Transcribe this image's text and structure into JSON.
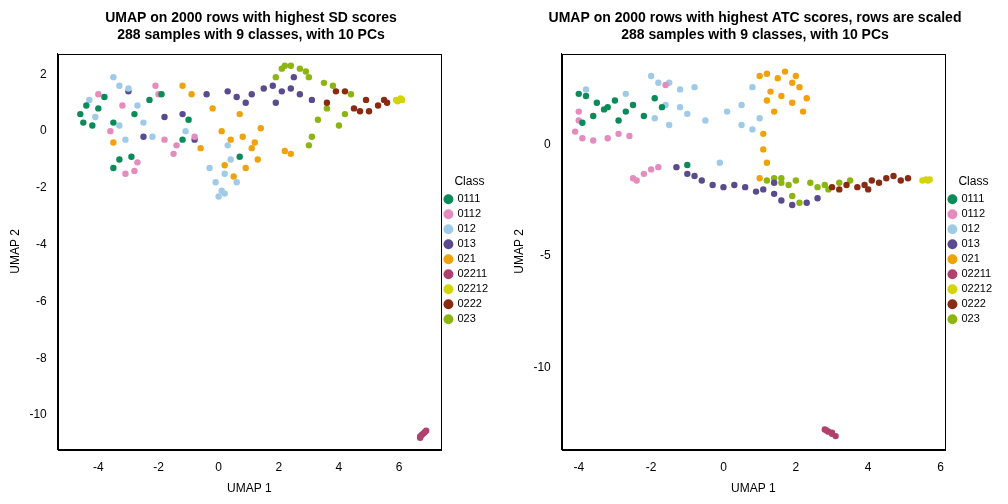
{
  "chart_data": [
    {
      "type": "scatter",
      "title": [
        "UMAP on 2000 rows with highest SD scores",
        "288 samples with 9 classes, with 10 PCs"
      ],
      "x_label": "UMAP 1",
      "y_label": "UMAP 2",
      "xlim": [
        -5.35,
        7.39
      ],
      "ylim": [
        -11.2,
        2.73
      ],
      "xticks": [
        -4,
        -2,
        0,
        2,
        4,
        6
      ],
      "yticks": [
        -10,
        -8,
        -6,
        -4,
        -2,
        0,
        2
      ],
      "grid": false,
      "legend": "right",
      "legend_title": "Class",
      "marker": "circle",
      "series": [
        {
          "name": "0111",
          "color": "#0b8a5a",
          "x": [
            -4.5,
            -4.6,
            -4.4,
            -4.0,
            -3.5,
            -3.3,
            -3.5,
            -2.9,
            -1.2,
            -1.0,
            -1.9,
            -2.8,
            0.7,
            -4.2,
            -3.8,
            -2.3
          ],
          "y": [
            0.3,
            0.6,
            0.9,
            0.8,
            0.3,
            -1.0,
            -1.3,
            -0.9,
            -0.3,
            0.4,
            1.3,
            0.6,
            -0.9,
            0.2,
            1.2,
            1.1
          ]
        },
        {
          "name": "0112",
          "color": "#e38cbd",
          "x": [
            -2.1,
            -2.0,
            -1.5,
            -1.4,
            -2.8,
            -3.1,
            -4.0,
            -3.6,
            -0.8,
            -1.8,
            -2.7,
            -3.2
          ],
          "y": [
            1.6,
            1.3,
            -0.8,
            -0.5,
            -1.4,
            -1.5,
            1.3,
            0.0,
            -0.2,
            -0.3,
            -1.1,
            0.9
          ]
        },
        {
          "name": "012",
          "color": "#9fcbe8",
          "x": [
            -3.5,
            -3.3,
            -3.0,
            -2.7,
            -4.1,
            -3.3,
            -3.1,
            -2.2,
            -1.1,
            0.0,
            0.1,
            -0.1,
            0.2,
            0.4,
            0.3,
            0.6,
            0.2,
            -0.3,
            -2.5,
            -4.3
          ],
          "y": [
            1.9,
            1.6,
            1.5,
            0.9,
            0.5,
            0.2,
            -0.3,
            -0.2,
            0.0,
            -2.3,
            -2.1,
            -1.8,
            -1.5,
            -1.0,
            -0.5,
            -1.8,
            -2.2,
            -1.3,
            0.3,
            1.1
          ]
        },
        {
          "name": "013",
          "color": "#5a4a8e",
          "x": [
            -3.0,
            -1.8,
            -0.8,
            -0.4,
            0.3,
            0.6,
            1.1,
            1.5,
            1.8,
            2.1,
            2.4,
            2.5,
            2.7,
            3.1,
            1.9,
            -1.2,
            -2.5,
            0.9
          ],
          "y": [
            1.4,
            0.5,
            -0.3,
            1.3,
            1.4,
            1.2,
            1.3,
            1.5,
            1.6,
            1.4,
            1.5,
            1.9,
            1.3,
            1.1,
            1.0,
            0.6,
            -0.2,
            1.0
          ]
        },
        {
          "name": "021",
          "color": "#f0a20c",
          "x": [
            -1.2,
            -0.9,
            -0.2,
            0.1,
            0.4,
            0.8,
            1.1,
            1.3,
            0.9,
            0.5,
            0.2,
            -0.6,
            1.2,
            2.2,
            2.4,
            0.7,
            1.4,
            -3.5
          ],
          "y": [
            1.6,
            1.3,
            0.8,
            0.0,
            -0.3,
            -0.2,
            -0.6,
            -1.0,
            -1.3,
            -1.6,
            -1.2,
            -0.6,
            -0.4,
            -0.7,
            -0.8,
            0.6,
            0.1,
            -0.4
          ]
        },
        {
          "name": "02211",
          "color": "#b0406e",
          "x": [
            6.7,
            6.75,
            6.8,
            6.85,
            6.9,
            6.7
          ],
          "y": [
            -10.8,
            -10.7,
            -10.65,
            -10.6,
            -10.55,
            -10.75
          ]
        },
        {
          "name": "02212",
          "color": "#d4d40c",
          "x": [
            5.9,
            6.0,
            6.1,
            5.95,
            6.05
          ],
          "y": [
            1.1,
            1.1,
            1.1,
            1.05,
            1.15
          ]
        },
        {
          "name": "0222",
          "color": "#8a2a12",
          "x": [
            3.6,
            3.9,
            4.2,
            4.5,
            4.7,
            5.0,
            5.3,
            5.5,
            5.6,
            4.9
          ],
          "y": [
            1.0,
            1.4,
            1.4,
            0.8,
            0.7,
            0.7,
            0.9,
            1.1,
            1.0,
            1.1
          ]
        },
        {
          "name": "023",
          "color": "#8db511",
          "x": [
            1.9,
            2.1,
            2.4,
            2.7,
            2.9,
            3.0,
            3.5,
            3.8,
            3.6,
            3.3,
            3.1,
            3.0,
            4.0,
            4.2,
            4.4,
            2.2
          ],
          "y": [
            1.9,
            2.2,
            2.3,
            2.2,
            2.1,
            1.9,
            1.7,
            1.6,
            0.8,
            0.4,
            -0.2,
            -0.5,
            0.2,
            0.6,
            1.3,
            2.3
          ]
        }
      ]
    },
    {
      "type": "scatter",
      "title": [
        "UMAP on 2000 rows with highest ATC scores, rows are scaled",
        "288 samples with 9 classes, with 10 PCs"
      ],
      "x_label": "UMAP 1",
      "y_label": "UMAP 2",
      "xlim": [
        -4.47,
        6.12
      ],
      "ylim": [
        -13.69,
        4.11
      ],
      "xticks": [
        -4,
        -2,
        0,
        2,
        4,
        6
      ],
      "yticks": [
        -10,
        -5,
        0
      ],
      "grid": false,
      "legend": "right",
      "legend_title": "Class",
      "marker": "circle",
      "series": [
        {
          "name": "0111",
          "color": "#0b8a5a",
          "x": [
            -4.0,
            -3.8,
            -3.5,
            -3.3,
            -3.0,
            -2.7,
            -2.5,
            -2.2,
            -1.9,
            -1.7,
            -3.9,
            -3.6,
            -2.9,
            -1.0,
            -3.2
          ],
          "y": [
            2.3,
            2.2,
            1.9,
            1.6,
            2.0,
            1.5,
            1.8,
            1.3,
            2.1,
            1.7,
            1.0,
            1.3,
            1.1,
            -0.9,
            1.7
          ]
        },
        {
          "name": "0112",
          "color": "#e38cbd",
          "x": [
            -4.0,
            -4.1,
            -3.9,
            -3.6,
            -3.2,
            -2.9,
            -2.6,
            -2.4,
            -2.2,
            -2.0,
            -1.8,
            -2.5,
            -4.0,
            -1.6
          ],
          "y": [
            1.1,
            0.6,
            0.3,
            0.2,
            0.3,
            0.5,
            0.4,
            -1.6,
            -1.3,
            -1.1,
            -1.0,
            -1.5,
            1.5,
            2.7
          ]
        },
        {
          "name": "012",
          "color": "#9fcbe8",
          "x": [
            -3.8,
            -2.7,
            -2.0,
            -1.8,
            -1.5,
            -1.2,
            -0.8,
            -1.6,
            -1.9,
            -1.5,
            -1.0,
            -0.5,
            0.1,
            0.5,
            0.8,
            1.0,
            0.8,
            -0.1,
            0.5,
            -1.2
          ],
          "y": [
            2.5,
            2.3,
            3.1,
            2.8,
            2.8,
            2.5,
            2.6,
            1.8,
            1.2,
            0.9,
            1.4,
            1.1,
            1.5,
            1.8,
            2.6,
            1.2,
            0.7,
            -0.8,
            0.9,
            1.7
          ]
        },
        {
          "name": "013",
          "color": "#5a4a8e",
          "x": [
            -1.3,
            -1.0,
            -0.6,
            -0.3,
            0.0,
            0.3,
            0.6,
            0.9,
            1.1,
            1.4,
            1.6,
            1.9,
            2.3,
            2.6,
            -0.8,
            1.4
          ],
          "y": [
            -1.0,
            -1.3,
            -1.6,
            -1.8,
            -1.9,
            -1.8,
            -1.9,
            -2.1,
            -2.0,
            -2.2,
            -2.5,
            -2.7,
            -2.6,
            -2.4,
            -1.4,
            -1.7
          ]
        },
        {
          "name": "021",
          "color": "#f0a20c",
          "x": [
            1.2,
            1.5,
            1.7,
            1.9,
            2.1,
            2.3,
            2.2,
            1.9,
            1.6,
            1.3,
            1.0,
            1.2,
            1.4,
            1.1,
            1.1,
            1.2,
            1.0,
            2.0
          ],
          "y": [
            3.2,
            3.0,
            3.3,
            2.8,
            2.6,
            2.1,
            1.5,
            1.9,
            2.2,
            2.4,
            3.1,
            2.0,
            1.5,
            0.5,
            -0.2,
            -0.8,
            -1.5,
            3.1
          ]
        },
        {
          "name": "02211",
          "color": "#b0406e",
          "x": [
            2.8,
            2.9,
            3.0,
            3.1,
            3.0,
            2.85
          ],
          "y": [
            -12.8,
            -12.9,
            -13.0,
            -13.1,
            -12.95,
            -12.85
          ]
        },
        {
          "name": "02212",
          "color": "#d4d40c",
          "x": [
            5.5,
            5.6,
            5.7,
            5.65
          ],
          "y": [
            -1.6,
            -1.55,
            -1.55,
            -1.6
          ]
        },
        {
          "name": "0222",
          "color": "#8a2a12",
          "x": [
            3.2,
            3.4,
            3.7,
            3.9,
            4.1,
            4.3,
            4.5,
            4.7,
            4.9,
            5.1,
            3.0,
            4.0
          ],
          "y": [
            -2.0,
            -1.8,
            -1.9,
            -1.8,
            -1.6,
            -1.7,
            -1.5,
            -1.4,
            -1.6,
            -1.5,
            -1.9,
            -2.0
          ]
        },
        {
          "name": "023",
          "color": "#8db511",
          "x": [
            1.2,
            1.4,
            1.6,
            1.8,
            2.0,
            2.4,
            2.6,
            2.8,
            3.2,
            3.5,
            1.9,
            2.1,
            1.6,
            2.9
          ],
          "y": [
            -1.6,
            -1.5,
            -1.7,
            -1.8,
            -1.6,
            -1.7,
            -1.9,
            -1.8,
            -1.7,
            -1.6,
            -2.3,
            -2.6,
            -1.5,
            -2.0
          ]
        }
      ]
    }
  ]
}
